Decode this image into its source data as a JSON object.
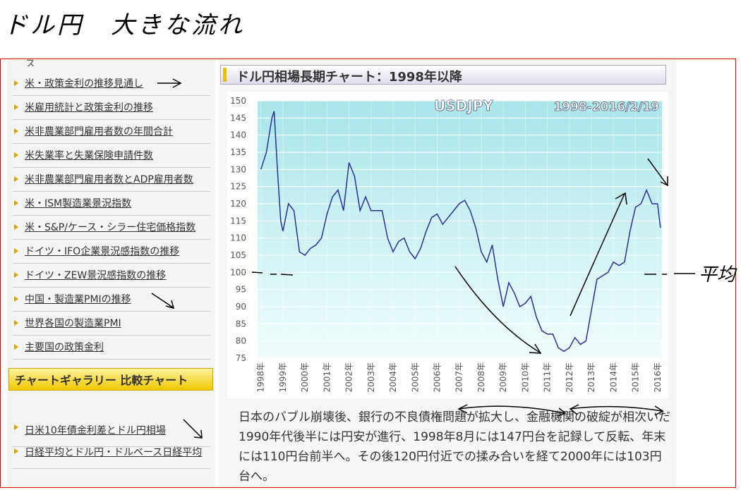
{
  "note_title": "ドル円　大きな流れ",
  "note_average": "平均",
  "sidebar": {
    "top_cut": "ス",
    "links": [
      "米・政策金利の推移見通し",
      "米雇用統計と政策金利の推移",
      "米非農業部門雇用者数の年間合計",
      "米失業率と失業保険申請件数",
      "米非農業部門雇用者数とADP雇用者数",
      "米・ISM製造業景況指数",
      "米・S&P/ケース・シラー住宅価格指数",
      "ドイツ・IFO企業景況感指数の推移",
      "ドイツ・ZEW景況感指数の推移",
      "中国・製造業PMIの推移",
      "世界各国の製造業PMI",
      "主要国の政策金利"
    ],
    "section_title": "チャートギャラリー 比較チャート",
    "section_links": [
      "日米10年債金利差とドル円相場",
      "日経平均とドル円・ドルベース日経平均"
    ]
  },
  "main": {
    "heading": "ドル円相場長期チャート：1998年以降",
    "paragraph": "日本のバブル崩壊後、銀行の不良債権問題が拡大し、金融機関の破綻が相次いだ1990年代後半には円安が進行、1998年8月には147円台を記録して反転、年末には110円台前半へ。その後120円付近での揉み合いを経て2000年には103円台へ。"
  },
  "chart_data": {
    "type": "line",
    "title": "USDJPY",
    "subtitle": "1998-2016/2/19",
    "x": [
      1998.0,
      1998.25,
      1998.5,
      1998.6,
      1998.75,
      1998.9,
      1999.0,
      1999.25,
      1999.5,
      1999.75,
      2000.0,
      2000.25,
      2000.5,
      2000.75,
      2001.0,
      2001.25,
      2001.5,
      2001.75,
      2002.0,
      2002.25,
      2002.5,
      2002.75,
      2003.0,
      2003.25,
      2003.5,
      2003.75,
      2004.0,
      2004.25,
      2004.5,
      2004.75,
      2005.0,
      2005.25,
      2005.5,
      2005.75,
      2006.0,
      2006.25,
      2006.5,
      2006.75,
      2007.0,
      2007.25,
      2007.5,
      2007.75,
      2008.0,
      2008.25,
      2008.5,
      2008.75,
      2009.0,
      2009.25,
      2009.5,
      2009.75,
      2010.0,
      2010.25,
      2010.5,
      2010.75,
      2011.0,
      2011.25,
      2011.5,
      2011.75,
      2012.0,
      2012.25,
      2012.5,
      2012.75,
      2013.0,
      2013.25,
      2013.5,
      2013.75,
      2014.0,
      2014.25,
      2014.5,
      2014.75,
      2015.0,
      2015.25,
      2015.5,
      2015.75,
      2016.0,
      2016.13
    ],
    "series": [
      {
        "name": "USDJPY",
        "color": "#2b2f9a",
        "values": [
          130,
          135,
          145,
          147,
          130,
          115,
          112,
          120,
          118,
          106,
          105,
          107,
          108,
          110,
          117,
          122,
          124,
          118,
          132,
          128,
          118,
          122,
          118,
          118,
          118,
          110,
          106,
          109,
          110,
          106,
          104,
          107,
          112,
          116,
          117,
          114,
          116,
          118,
          120,
          121,
          118,
          113,
          106,
          103,
          108,
          98,
          90,
          97,
          94,
          90,
          91,
          93,
          87,
          83,
          82,
          82,
          78,
          77,
          78,
          81,
          79,
          80,
          89,
          98,
          99,
          100,
          103,
          102,
          103,
          112,
          119,
          120,
          124,
          120,
          120,
          113
        ]
      }
    ],
    "xlim": [
      1997.85,
      2016.2
    ],
    "xticks": [
      {
        "value": 1998,
        "label": "1998年"
      },
      {
        "value": 1999,
        "label": "1999年"
      },
      {
        "value": 2000,
        "label": "2000年"
      },
      {
        "value": 2001,
        "label": "2001年"
      },
      {
        "value": 2002,
        "label": "2002年"
      },
      {
        "value": 2003,
        "label": "2003年"
      },
      {
        "value": 2004,
        "label": "2004年"
      },
      {
        "value": 2005,
        "label": "2005年"
      },
      {
        "value": 2006,
        "label": "2006年"
      },
      {
        "value": 2007,
        "label": "2007年"
      },
      {
        "value": 2008,
        "label": "2008年"
      },
      {
        "value": 2009,
        "label": "2009年"
      },
      {
        "value": 2010,
        "label": "2010年"
      },
      {
        "value": 2011,
        "label": "2011年"
      },
      {
        "value": 2012,
        "label": "2012年"
      },
      {
        "value": 2013,
        "label": "2013年"
      },
      {
        "value": 2014,
        "label": "2014年"
      },
      {
        "value": 2015,
        "label": "2015年"
      },
      {
        "value": 2016,
        "label": "2016年"
      }
    ],
    "ylim": [
      75,
      150
    ],
    "yticks": [
      75,
      80,
      85,
      90,
      95,
      100,
      105,
      110,
      115,
      120,
      125,
      130,
      135,
      140,
      145,
      150
    ],
    "grid": true
  }
}
